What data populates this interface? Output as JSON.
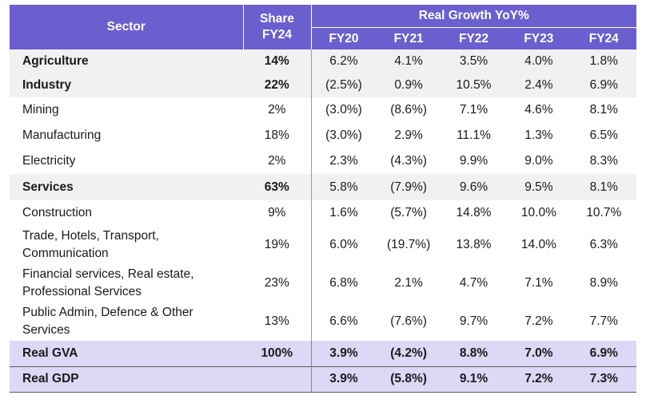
{
  "headers": {
    "sector": "Sector",
    "share_line1": "Share",
    "share_line2": "FY24",
    "group": "Real Growth YoY%",
    "years": [
      "FY20",
      "FY21",
      "FY22",
      "FY23",
      "FY24"
    ]
  },
  "rows": [
    {
      "sector": "Agriculture",
      "share": "14%",
      "values": [
        "6.2%",
        "4.1%",
        "3.5%",
        "4.0%",
        "1.8%"
      ]
    },
    {
      "sector": "Industry",
      "share": "22%",
      "values": [
        "(2.5%)",
        "0.9%",
        "10.5%",
        "2.4%",
        "6.9%"
      ]
    },
    {
      "sector": "Mining",
      "share": "2%",
      "values": [
        "(3.0%)",
        "(8.6%)",
        "7.1%",
        "4.6%",
        "8.1%"
      ]
    },
    {
      "sector": "Manufacturing",
      "share": "18%",
      "values": [
        "(3.0%)",
        "2.9%",
        "11.1%",
        "1.3%",
        "6.5%"
      ]
    },
    {
      "sector": "Electricity",
      "share": "2%",
      "values": [
        "2.3%",
        "(4.3%)",
        "9.9%",
        "9.0%",
        "8.3%"
      ]
    },
    {
      "sector": "Services",
      "share": "63%",
      "values": [
        "5.8%",
        "(7.9%)",
        "9.6%",
        "9.5%",
        "8.1%"
      ]
    },
    {
      "sector": "Construction",
      "share": "9%",
      "values": [
        "1.6%",
        "(5.7%)",
        "14.8%",
        "10.0%",
        "10.7%"
      ]
    },
    {
      "sector_line1": "Trade, Hotels, Transport,",
      "sector_line2": "Communication",
      "share": "19%",
      "values": [
        "6.0%",
        "(19.7%)",
        "13.8%",
        "14.0%",
        "6.3%"
      ]
    },
    {
      "sector_line1": "Financial services, Real estate,",
      "sector_line2": "Professional Services",
      "share": "23%",
      "values": [
        "6.8%",
        "2.1%",
        "4.7%",
        "7.1%",
        "8.9%"
      ]
    },
    {
      "sector_line1": "Public Admin, Defence & Other",
      "sector_line2": "Services",
      "share": "13%",
      "values": [
        "6.6%",
        "(7.6%)",
        "9.7%",
        "7.2%",
        "7.7%"
      ]
    },
    {
      "sector": "Real GVA",
      "share": "100%",
      "values": [
        "3.9%",
        "(4.2%)",
        "8.8%",
        "7.0%",
        "6.9%"
      ]
    },
    {
      "sector": "Real GDP",
      "share": "",
      "values": [
        "3.9%",
        "(5.8%)",
        "9.1%",
        "7.2%",
        "7.3%"
      ]
    }
  ],
  "colors": {
    "header_bg": "#6b5fcf",
    "total_bg": "#dcd8f6",
    "stripe_bg": "#f1f1f1"
  }
}
